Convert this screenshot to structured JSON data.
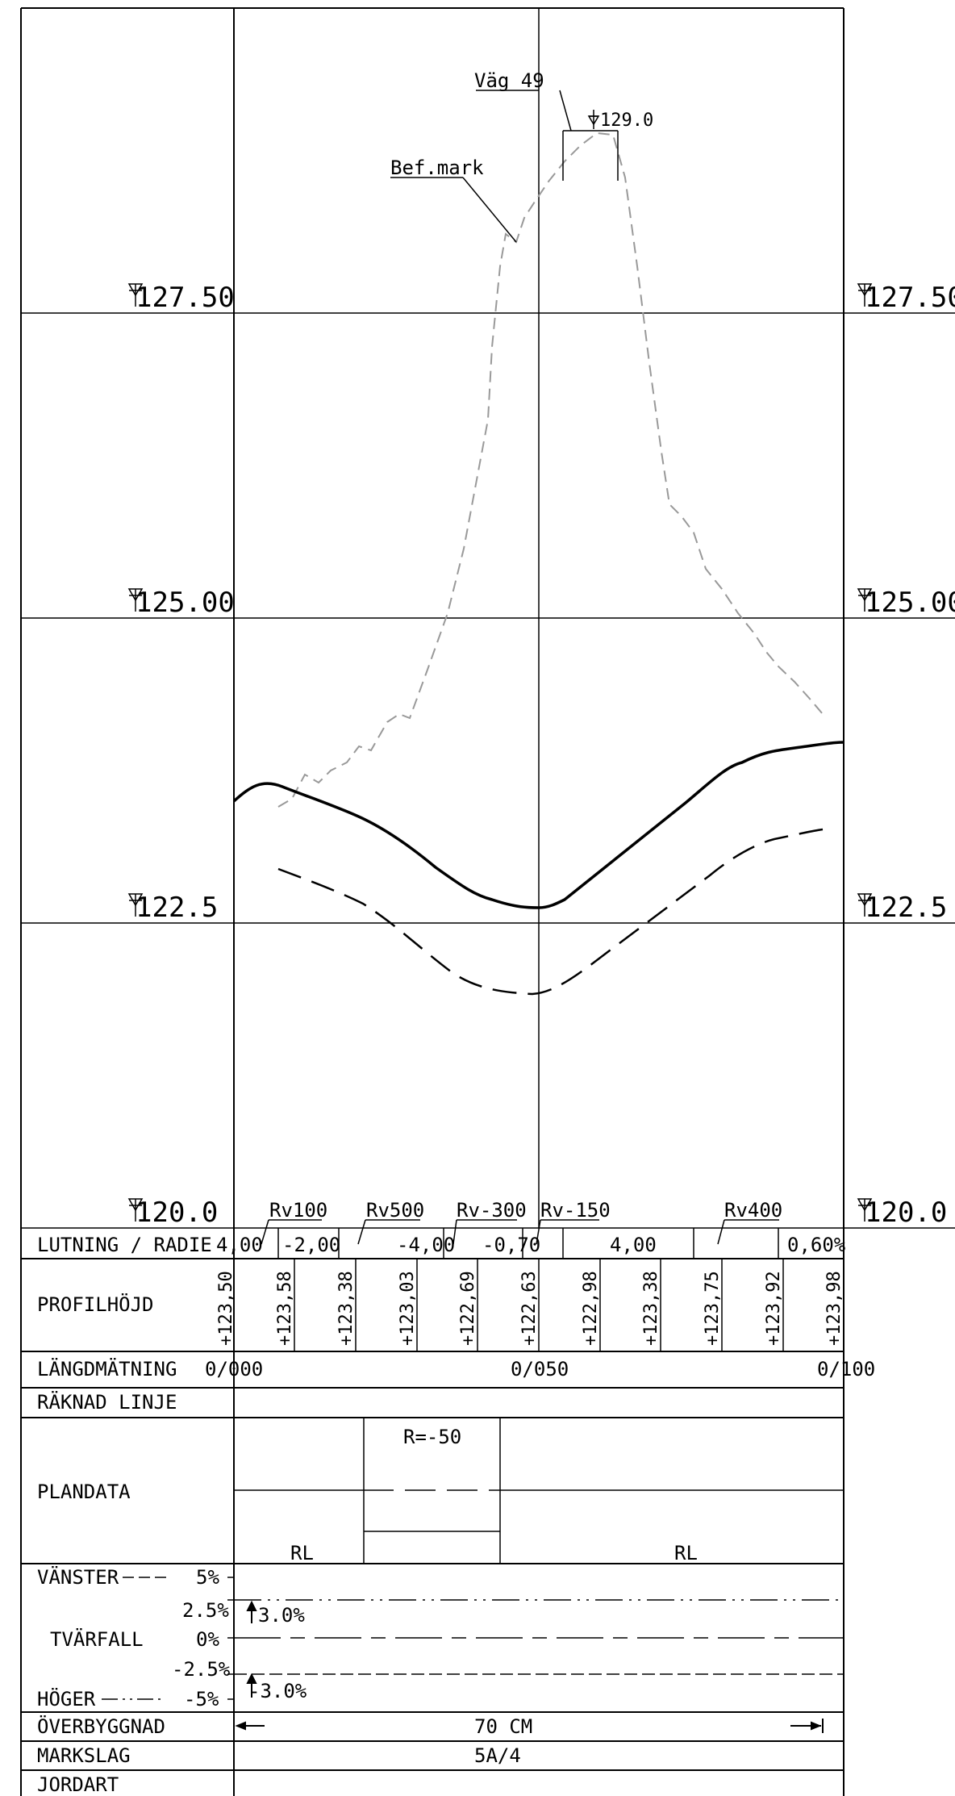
{
  "elevation_labels": [
    "127.50",
    "125.00",
    "122.5",
    "120.0"
  ],
  "annotations": {
    "road_name": "Väg 49",
    "road_peak": "129.0",
    "existing_ground": "Bef.mark"
  },
  "vertical_curves": [
    "Rv100",
    "Rv500",
    "Rv-300",
    "Rv-150",
    "Rv400"
  ],
  "bands": {
    "lutning_radie": {
      "label": "LUTNING / RADIE",
      "values": [
        "4,00",
        "-2,00",
        "-4,00",
        "-0,70",
        "4,00",
        "0,60%"
      ]
    },
    "profilhojd": {
      "label": "PROFILHÖJD",
      "values": [
        "+123,50",
        "+123,58",
        "+123,38",
        "+123,03",
        "+122,69",
        "+122,63",
        "+122,98",
        "+123,38",
        "+123,75",
        "+123,92",
        "+123,98"
      ]
    },
    "langdmatning": {
      "label": "LÄNGDMÄTNING",
      "values": [
        "0/000",
        "0/050",
        "0/100"
      ]
    },
    "raknad_linje": {
      "label": "RÄKNAD LINJE"
    },
    "plandata": {
      "label": "PLANDATA",
      "radius": "R=-50",
      "left": "RL",
      "right": "RL"
    },
    "tvarfall": {
      "label": "TVÄRFALL",
      "left_label": "VÄNSTER",
      "right_label": "HÖGER",
      "scale": [
        "5%",
        "2.5%",
        "0%",
        "-2.5%",
        "-5%"
      ],
      "left_value": "3.0%",
      "right_value": "-3.0%"
    },
    "overbyggnad": {
      "label": "ÖVERBYGGNAD",
      "value": "70 CM"
    },
    "markslag": {
      "label": "MARKSLAG",
      "value": "5A/4"
    },
    "jordart": {
      "label": "JORDART"
    }
  }
}
